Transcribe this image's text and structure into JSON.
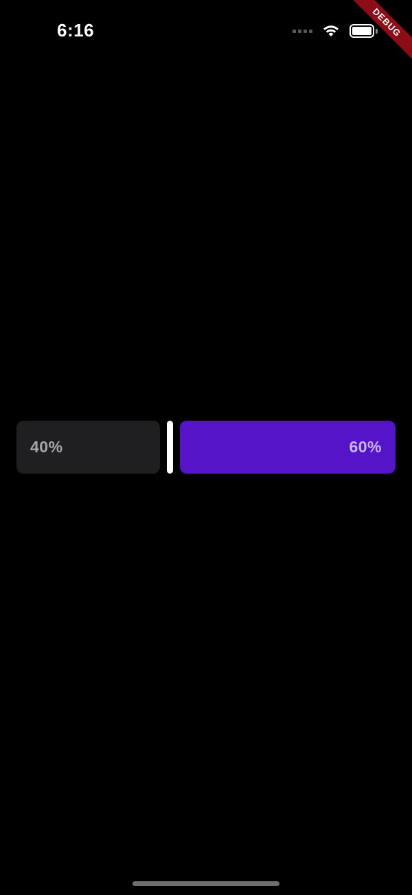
{
  "status_bar": {
    "time": "6:16",
    "icons": [
      "signal-dots-icon",
      "wifi-icon",
      "battery-icon"
    ]
  },
  "debug_banner": {
    "label": "DEBUG",
    "color": "#8e0c16"
  },
  "split_control": {
    "ratio": 0.4,
    "left_label": "40%",
    "right_label": "60%",
    "left_color": "#1f1e21",
    "right_color": "#5614c8",
    "handle_color": "#ffffff"
  },
  "theme": {
    "background": "#000000"
  }
}
